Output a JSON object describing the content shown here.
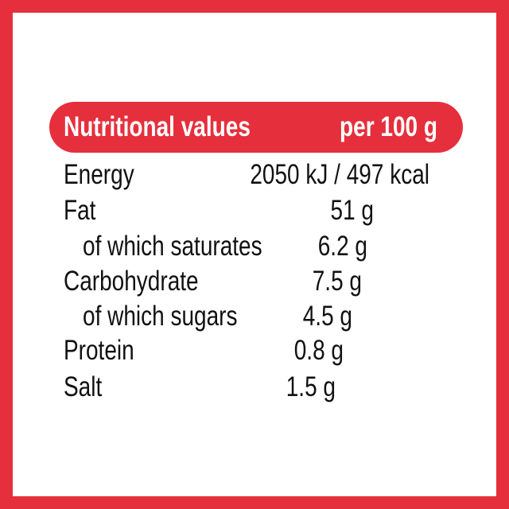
{
  "header": {
    "title": "Nutritional values",
    "per": "per 100 g"
  },
  "rows": [
    {
      "label": "Energy",
      "value": "2050 kJ / 497 kcal"
    },
    {
      "label": "Fat",
      "value": "51 g"
    },
    {
      "label": "of which saturates",
      "value": "6.2 g"
    },
    {
      "label": "Carbohydrate",
      "value": "7.5 g"
    },
    {
      "label": "of which sugars",
      "value": "4.5 g"
    },
    {
      "label": "Protein",
      "value": "0.8 g"
    },
    {
      "label": "Salt",
      "value": "1.5 g"
    }
  ]
}
